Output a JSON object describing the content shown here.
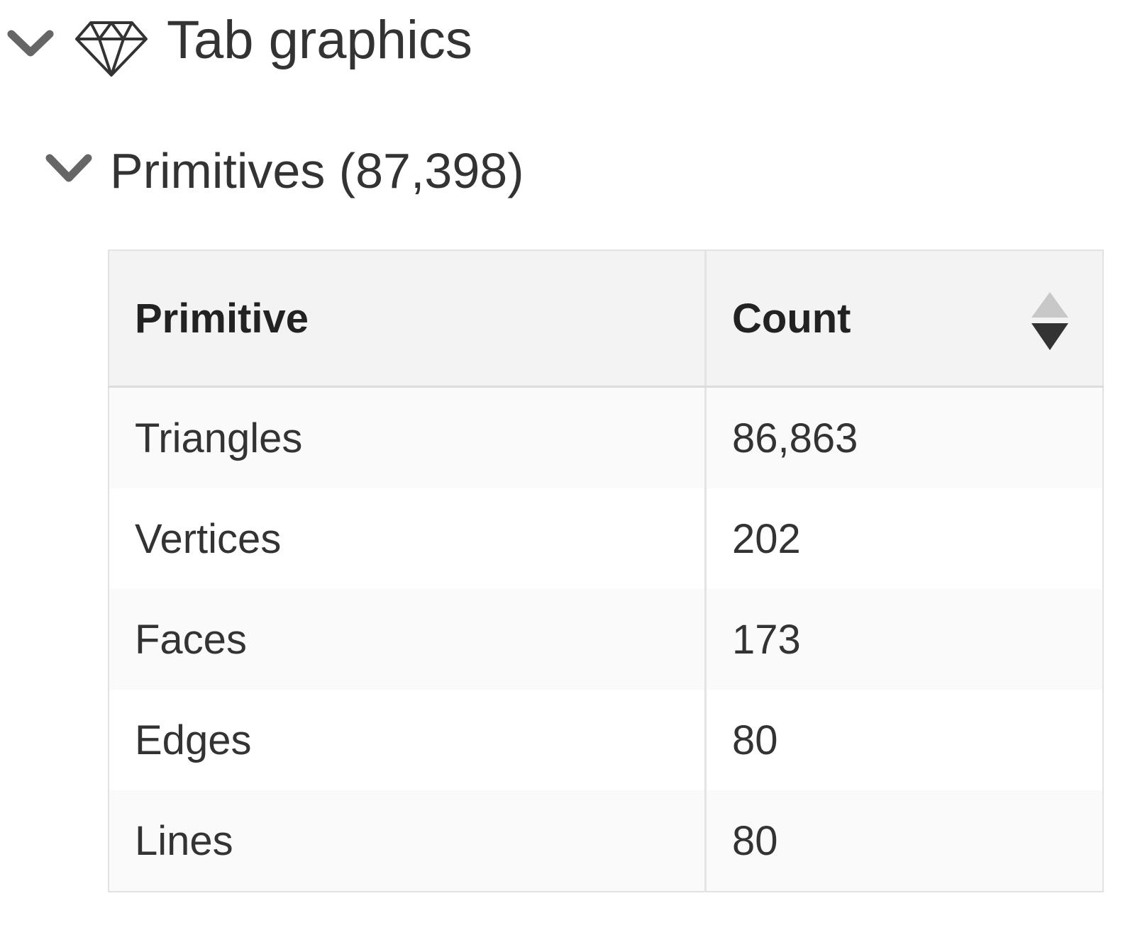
{
  "section": {
    "title": "Tab graphics",
    "icon": "diamond-icon",
    "expanded": true
  },
  "subsection": {
    "title": "Primitives (87,398)",
    "expanded": true
  },
  "table": {
    "columns": [
      "Primitive",
      "Count"
    ],
    "sort": {
      "column": "Count",
      "direction": "descending"
    },
    "rows": [
      [
        "Triangles",
        "86,863"
      ],
      [
        "Vertices",
        "202"
      ],
      [
        "Faces",
        "173"
      ],
      [
        "Edges",
        "80"
      ],
      [
        "Lines",
        "80"
      ]
    ]
  }
}
